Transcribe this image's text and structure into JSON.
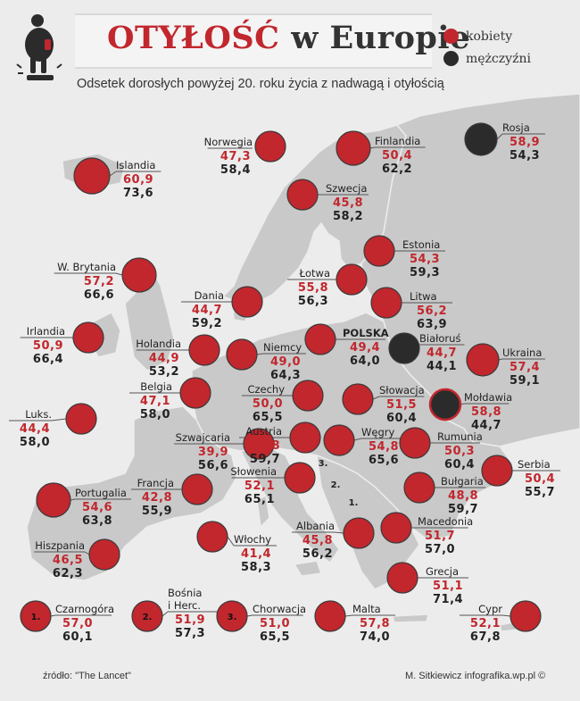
{
  "header": {
    "title_part1": "OTYŁOŚĆ",
    "title_part2": "w Europie",
    "subtitle": "Odsetek dorosłych powyżej 20. roku życia z nadwagą i otyłością"
  },
  "legend": {
    "women_label": "kobiety",
    "men_label": "mężczyźni"
  },
  "colors": {
    "women": "#c1272d",
    "men": "#2b2b2b",
    "land": "#c9c9c9",
    "sea": "#ececec"
  },
  "footer": {
    "source": "źródło: \"The Lancet\"",
    "credit": "M. Sitkiewicz infografika.wp.pl ©"
  },
  "map_markers": [
    "1.",
    "2.",
    "3."
  ],
  "chart_data": {
    "type": "table",
    "series": [
      {
        "name": "kobiety",
        "color": "#c1272d"
      },
      {
        "name": "mężczyźni",
        "color": "#2b2b2b"
      }
    ],
    "countries": [
      {
        "name": "Islandia",
        "women": "60,9",
        "men": "73,6"
      },
      {
        "name": "Norwegia",
        "women": "47,3",
        "men": "58,4"
      },
      {
        "name": "Finlandia",
        "women": "50,4",
        "men": "62,2"
      },
      {
        "name": "Rosja",
        "women": "58,9",
        "men": "54,3"
      },
      {
        "name": "Szwecja",
        "women": "45,8",
        "men": "58,2"
      },
      {
        "name": "Estonia",
        "women": "54,3",
        "men": "59,3"
      },
      {
        "name": "W. Brytania",
        "women": "57,2",
        "men": "66,6"
      },
      {
        "name": "Łotwa",
        "women": "55,8",
        "men": "56,3"
      },
      {
        "name": "Dania",
        "women": "44,7",
        "men": "59,2"
      },
      {
        "name": "Litwa",
        "women": "56,2",
        "men": "63,9"
      },
      {
        "name": "Irlandia",
        "women": "50,9",
        "men": "66,4"
      },
      {
        "name": "Holandia",
        "women": "44,9",
        "men": "53,2"
      },
      {
        "name": "Niemcy",
        "women": "49,0",
        "men": "64,3"
      },
      {
        "name": "POLSKA",
        "women": "49,4",
        "men": "64,0"
      },
      {
        "name": "Białoruś",
        "women": "44,7",
        "men": "44,1"
      },
      {
        "name": "Ukraina",
        "women": "57,4",
        "men": "59,1"
      },
      {
        "name": "Belgia",
        "women": "47,1",
        "men": "58,0"
      },
      {
        "name": "Czechy",
        "women": "50,0",
        "men": "65,5"
      },
      {
        "name": "Słowacja",
        "women": "51,5",
        "men": "60,4"
      },
      {
        "name": "Mołdawia",
        "women": "58,8",
        "men": "44,7"
      },
      {
        "name": "Luks.",
        "women": "44,4",
        "men": "58,0"
      },
      {
        "name": "Szwajcaria",
        "women": "39,9",
        "men": "56,6"
      },
      {
        "name": "Austria",
        "women": "42,8",
        "men": "59,7"
      },
      {
        "name": "Węgry",
        "women": "54,8",
        "men": "65,6"
      },
      {
        "name": "Rumunia",
        "women": "50,3",
        "men": "60,4"
      },
      {
        "name": "Słowenia",
        "women": "52,1",
        "men": "65,1"
      },
      {
        "name": "Serbia",
        "women": "50,4",
        "men": "55,7"
      },
      {
        "name": "Portugalia",
        "women": "54,6",
        "men": "63,8"
      },
      {
        "name": "Francja",
        "women": "42,8",
        "men": "55,9"
      },
      {
        "name": "Bułgaria",
        "women": "48,8",
        "men": "59,7"
      },
      {
        "name": "Macedonia",
        "women": "51,7",
        "men": "57,0"
      },
      {
        "name": "Hiszpania",
        "women": "46,5",
        "men": "62,3"
      },
      {
        "name": "Włochy",
        "women": "41,4",
        "men": "58,3"
      },
      {
        "name": "Albania",
        "women": "45,8",
        "men": "56,2"
      },
      {
        "name": "Grecja",
        "women": "51,1",
        "men": "71,4"
      },
      {
        "name": "Czarnogóra",
        "women": "57,0",
        "men": "60,1",
        "marker": "1."
      },
      {
        "name": "Bośnia i Herc.",
        "women": "51,9",
        "men": "57,3",
        "marker": "2."
      },
      {
        "name": "Chorwacja",
        "women": "51,0",
        "men": "65,5",
        "marker": "3."
      },
      {
        "name": "Malta",
        "women": "57,8",
        "men": "74,0"
      },
      {
        "name": "Cypr",
        "women": "52,1",
        "men": "67,8"
      }
    ]
  }
}
